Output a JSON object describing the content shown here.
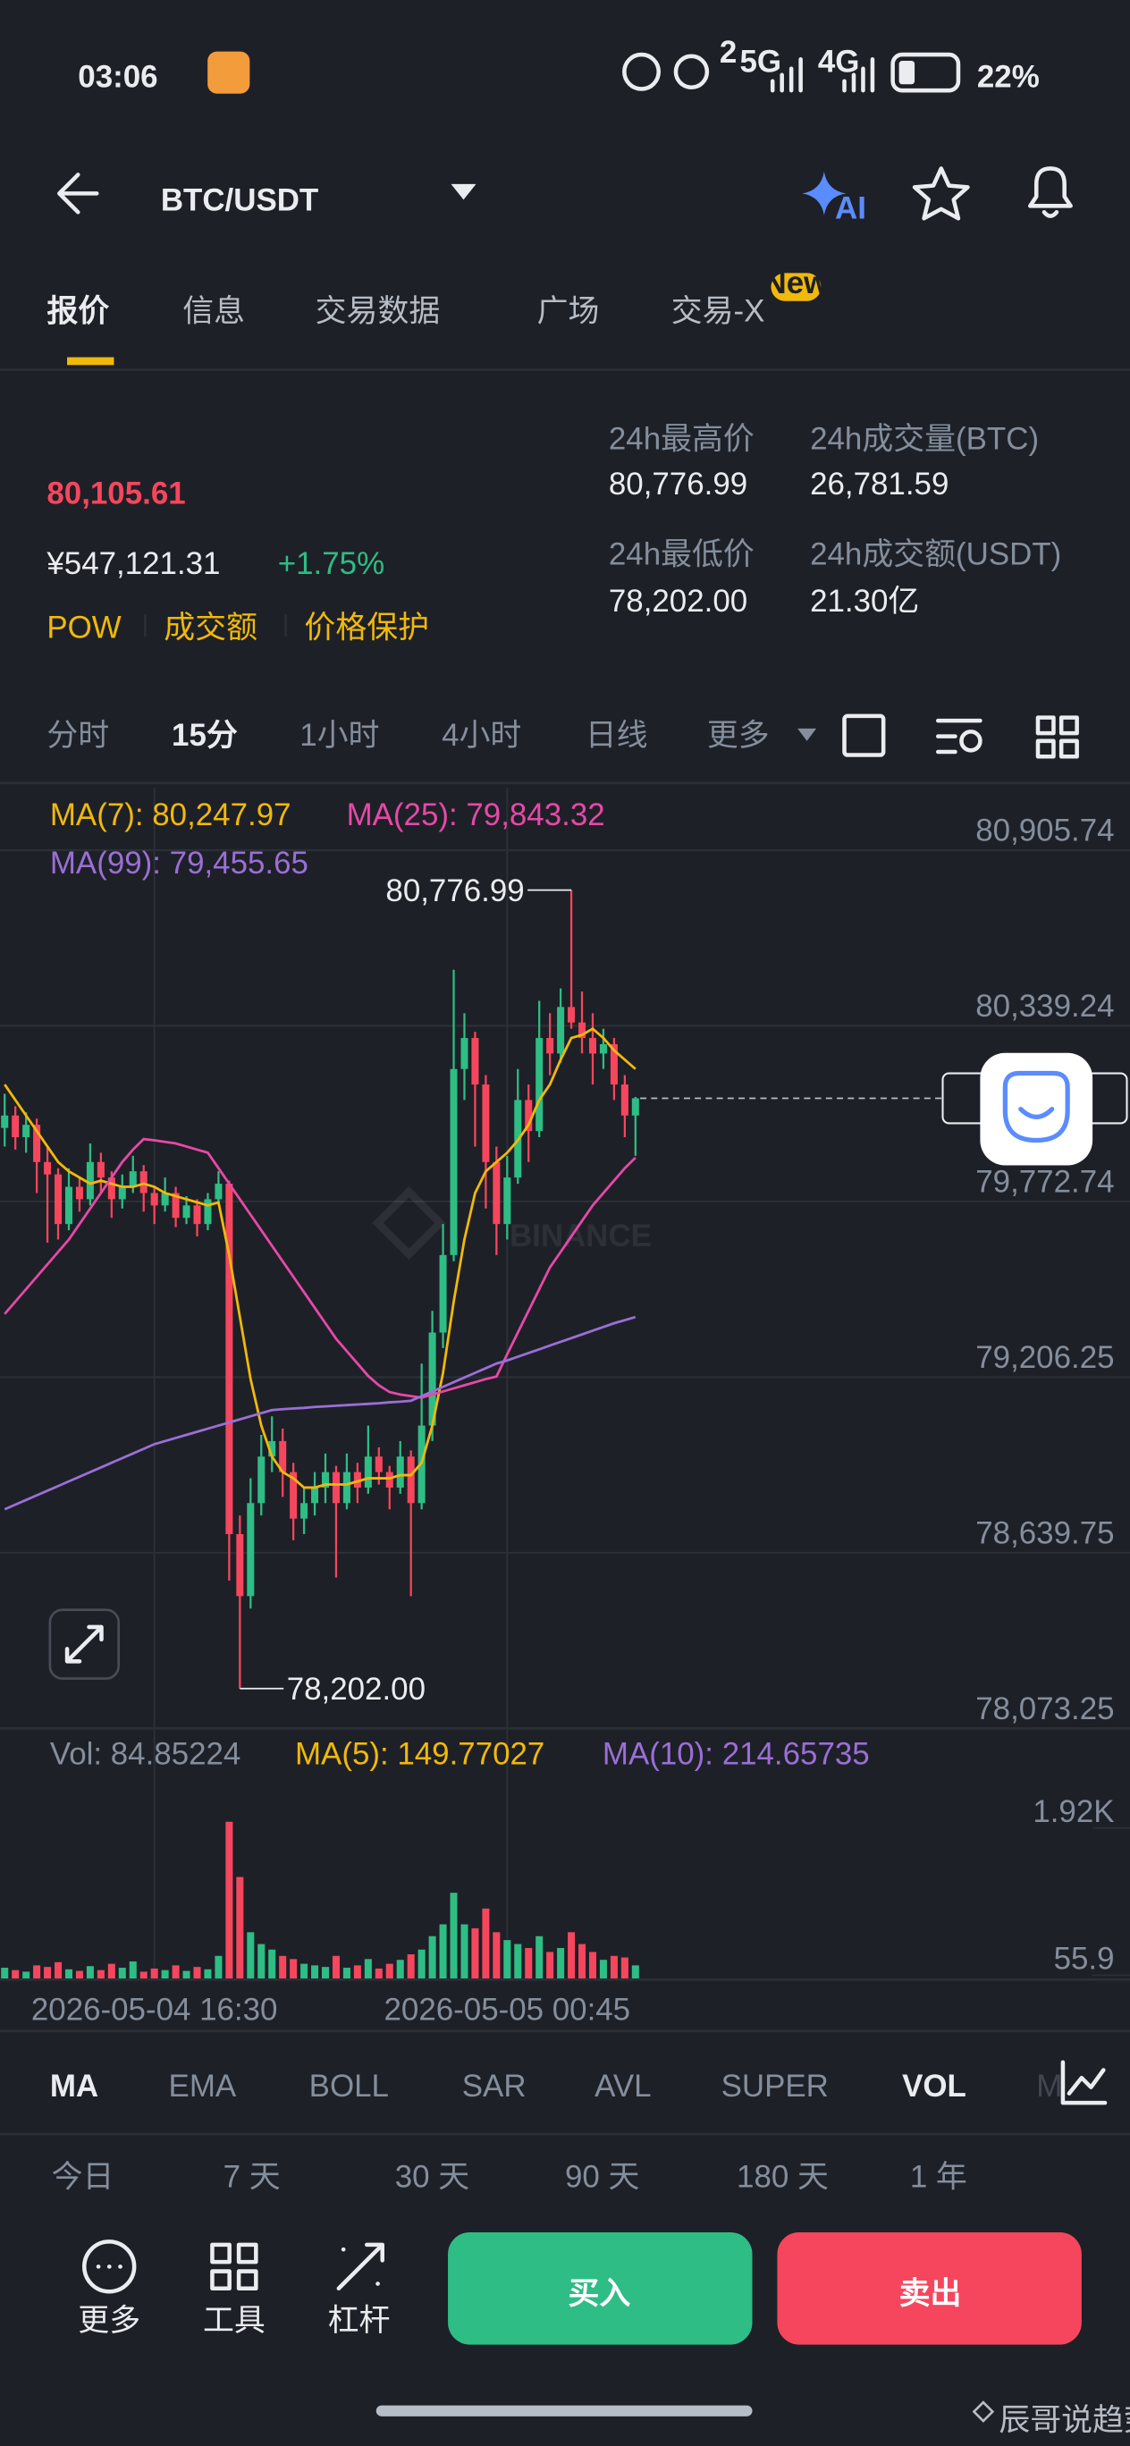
{
  "status_bar": {
    "time": "03:06",
    "signal": [
      "2",
      "5G",
      "4G"
    ],
    "battery": "22%"
  },
  "header": {
    "pair": "BTC/USDT",
    "ai_badge": "AI"
  },
  "tabs": {
    "items": [
      "报价",
      "信息",
      "交易数据",
      "广场",
      "交易-X"
    ],
    "badge": "New"
  },
  "ticker": {
    "last": "80,105.61",
    "cny": "¥547,121.31",
    "change": "+1.75%",
    "tags": [
      "POW",
      "成交额",
      "价格保护"
    ],
    "stats": [
      {
        "label": "24h最高价",
        "value": "80,776.99"
      },
      {
        "label": "24h成交量(BTC)",
        "value": "26,781.59"
      },
      {
        "label": "24h最低价",
        "value": "78,202.00"
      },
      {
        "label": "24h成交额(USDT)",
        "value": "21.30亿"
      }
    ]
  },
  "intervals": [
    "分时",
    "15分",
    "1小时",
    "4小时",
    "日线",
    "更多"
  ],
  "chart_data": {
    "type": "candlestick",
    "watermark": "BINANCE",
    "categories": [
      null,
      null,
      null,
      null,
      null,
      null,
      null,
      null,
      null,
      null,
      null,
      null,
      null,
      null,
      "2026-05-04 16:30",
      null,
      null,
      null,
      null,
      null,
      null,
      null,
      null,
      null,
      null,
      null,
      null,
      null,
      null,
      null,
      null,
      null,
      null,
      null,
      null,
      null,
      null,
      null,
      null,
      null,
      null,
      null,
      null,
      null,
      null,
      null,
      null,
      "2026-05-05 00:45",
      null,
      null,
      null,
      null,
      null,
      null,
      null,
      null,
      null,
      null,
      null,
      null
    ],
    "ohlc": [
      [
        80010,
        80120,
        79950,
        80050
      ],
      [
        80050,
        80080,
        79940,
        79980
      ],
      [
        79980,
        80060,
        79930,
        80020
      ],
      [
        80020,
        80040,
        79800,
        79900
      ],
      [
        79900,
        79950,
        79640,
        79860
      ],
      [
        79860,
        79880,
        79650,
        79700
      ],
      [
        79700,
        79880,
        79680,
        79820
      ],
      [
        79820,
        79850,
        79740,
        79780
      ],
      [
        79780,
        79960,
        79760,
        79900
      ],
      [
        79900,
        79930,
        79800,
        79850
      ],
      [
        79850,
        79870,
        79720,
        79780
      ],
      [
        79780,
        79860,
        79750,
        79820
      ],
      [
        79820,
        79920,
        79800,
        79870
      ],
      [
        79870,
        79890,
        79740,
        79800
      ],
      [
        79800,
        79820,
        79700,
        79760
      ],
      [
        79760,
        79850,
        79740,
        79800
      ],
      [
        79800,
        79820,
        79690,
        79720
      ],
      [
        79720,
        79790,
        79700,
        79760
      ],
      [
        79760,
        79780,
        79660,
        79700
      ],
      [
        79700,
        79800,
        79680,
        79780
      ],
      [
        79780,
        79870,
        79760,
        79830
      ],
      [
        79830,
        79840,
        78550,
        78700
      ],
      [
        78700,
        78760,
        78202,
        78500
      ],
      [
        78500,
        78880,
        78460,
        78800
      ],
      [
        78800,
        79020,
        78760,
        78950
      ],
      [
        78950,
        79080,
        78900,
        79000
      ],
      [
        79000,
        79040,
        78820,
        78900
      ],
      [
        78900,
        78930,
        78680,
        78750
      ],
      [
        78750,
        78850,
        78700,
        78800
      ],
      [
        78800,
        78900,
        78760,
        78850
      ],
      [
        78850,
        78960,
        78800,
        78900
      ],
      [
        78900,
        78920,
        78560,
        78800
      ],
      [
        78800,
        78960,
        78780,
        78900
      ],
      [
        78900,
        78930,
        78800,
        78850
      ],
      [
        78850,
        79050,
        78830,
        78950
      ],
      [
        78950,
        78980,
        78860,
        78900
      ],
      [
        78900,
        78920,
        78780,
        78850
      ],
      [
        78850,
        79000,
        78830,
        78950
      ],
      [
        78950,
        78970,
        78500,
        78800
      ],
      [
        78800,
        79250,
        78780,
        79050
      ],
      [
        79050,
        79420,
        79000,
        79350
      ],
      [
        79350,
        79700,
        79300,
        79600
      ],
      [
        79600,
        80520,
        79580,
        80200
      ],
      [
        80200,
        80380,
        80100,
        80300
      ],
      [
        80300,
        80320,
        79950,
        80150
      ],
      [
        80150,
        80180,
        79750,
        79900
      ],
      [
        79900,
        79950,
        79600,
        79700
      ],
      [
        79700,
        79920,
        79650,
        79850
      ],
      [
        79850,
        80200,
        79830,
        80100
      ],
      [
        80100,
        80150,
        79900,
        80000
      ],
      [
        80000,
        80420,
        79980,
        80300
      ],
      [
        80300,
        80380,
        80180,
        80250
      ],
      [
        80250,
        80460,
        80220,
        80400
      ],
      [
        80400,
        80776.99,
        80330,
        80350
      ],
      [
        80350,
        80450,
        80250,
        80300
      ],
      [
        80300,
        80380,
        80150,
        80250
      ],
      [
        80250,
        80330,
        80200,
        80280
      ],
      [
        80280,
        80300,
        80100,
        80150
      ],
      [
        80150,
        80180,
        79980,
        80050
      ],
      [
        80050,
        80110,
        79920,
        80105.61
      ]
    ],
    "up_color": "#2ebd85",
    "down_color": "#f6465d",
    "ylim": [
      78073.25,
      81107
    ],
    "yticks": [
      {
        "value": 80905.74,
        "label": "80,905.74"
      },
      {
        "value": 80339.24,
        "label": "80,339.24"
      },
      {
        "value": 79772.74,
        "label": "79,772.74"
      },
      {
        "value": 79206.25,
        "label": "79,206.25"
      },
      {
        "value": 78639.75,
        "label": "78,639.75"
      },
      {
        "value": 78073.25,
        "label": "78,073.25"
      }
    ],
    "ma": [
      {
        "legend": "MA(7): 80,247.97",
        "color": "#f0b90b",
        "values": [
          80150,
          80100,
          80050,
          80000,
          79950,
          79900,
          79870,
          79850,
          79830,
          79840,
          79830,
          79820,
          79820,
          79830,
          79820,
          79800,
          79790,
          79780,
          79770,
          79760,
          79770,
          79600,
          79400,
          79200,
          79050,
          78950,
          78900,
          78880,
          78850,
          78850,
          78860,
          78860,
          78860,
          78870,
          78880,
          78880,
          78880,
          78890,
          78890,
          78930,
          79050,
          79220,
          79450,
          79650,
          79800,
          79870,
          79900,
          79930,
          79970,
          80020,
          80100,
          80150,
          80230,
          80300,
          80310,
          80330,
          80300,
          80260,
          80230,
          80200
        ]
      },
      {
        "legend": "MA(25): 79,843.32",
        "color": "#e649a8",
        "values": [
          79410,
          79450,
          79490,
          79530,
          79570,
          79610,
          79650,
          79700,
          79750,
          79800,
          79850,
          79900,
          79940,
          79974,
          79970,
          79965,
          79960,
          79950,
          79940,
          79930,
          79880,
          79830,
          79780,
          79730,
          79680,
          79630,
          79580,
          79530,
          79480,
          79430,
          79380,
          79330,
          79290,
          79250,
          79210,
          79180,
          79158,
          79150,
          79145,
          79140,
          79150,
          79160,
          79170,
          79180,
          79190,
          79200,
          79208,
          79280,
          79350,
          79420,
          79490,
          79560,
          79610,
          79660,
          79710,
          79760,
          79800,
          79840,
          79880,
          79914
        ]
      },
      {
        "legend": "MA(99): 79,455.65",
        "color": "#9a6fd6",
        "values": [
          78780,
          78795,
          78810,
          78825,
          78840,
          78855,
          78870,
          78885,
          78900,
          78915,
          78930,
          78945,
          78960,
          78975,
          78990,
          79000,
          79010,
          79020,
          79030,
          79040,
          79050,
          79060,
          79070,
          79080,
          79090,
          79100,
          79103,
          79105,
          79107,
          79110,
          79112,
          79114,
          79116,
          79118,
          79120,
          79122,
          79125,
          79127,
          79130,
          79145,
          79160,
          79175,
          79190,
          79205,
          79220,
          79235,
          79250,
          79260,
          79272,
          79284,
          79296,
          79308,
          79320,
          79332,
          79344,
          79356,
          79368,
          79380,
          79390,
          79400
        ]
      }
    ],
    "annotations": [
      {
        "value": 80776.99,
        "label": "80,776.99"
      },
      {
        "value": 78202,
        "label": "78,202.00"
      }
    ],
    "volume": {
      "legend": "Vol: 84.85224",
      "ylim": [
        0,
        2550
      ],
      "yticks": [
        {
          "value": 1920,
          "label": "1.92K"
        },
        55.9
      ],
      "values": [
        150,
        120,
        100,
        180,
        160,
        220,
        130,
        110,
        170,
        120,
        200,
        150,
        230,
        100,
        140,
        120,
        180,
        110,
        160,
        130,
        300,
        2000,
        1300,
        600,
        450,
        380,
        300,
        260,
        200,
        180,
        160,
        300,
        150,
        180,
        260,
        140,
        200,
        250,
        320,
        380,
        550,
        700,
        1100,
        700,
        650,
        900,
        600,
        500,
        450,
        400,
        550,
        350,
        400,
        600,
        450,
        350,
        250,
        300,
        280,
        180
      ],
      "ma_legends": [
        {
          "text": "MA(5): 149.77027",
          "color": "#f0b90b"
        },
        {
          "text": "MA(10): 214.65735",
          "color": "#9a6fd6"
        }
      ]
    }
  },
  "indicators": [
    "MA",
    "EMA",
    "BOLL",
    "SAR",
    "AVL",
    "SUPER",
    "VOL",
    "M"
  ],
  "periods": [
    "今日",
    "7 天",
    "30 天",
    "90 天",
    "180 天",
    "1 年"
  ],
  "actions": {
    "tools": [
      "更多",
      "工具",
      "杠杆"
    ],
    "buy": "买入",
    "sell": "卖出"
  },
  "watermark": "辰哥说趋势"
}
